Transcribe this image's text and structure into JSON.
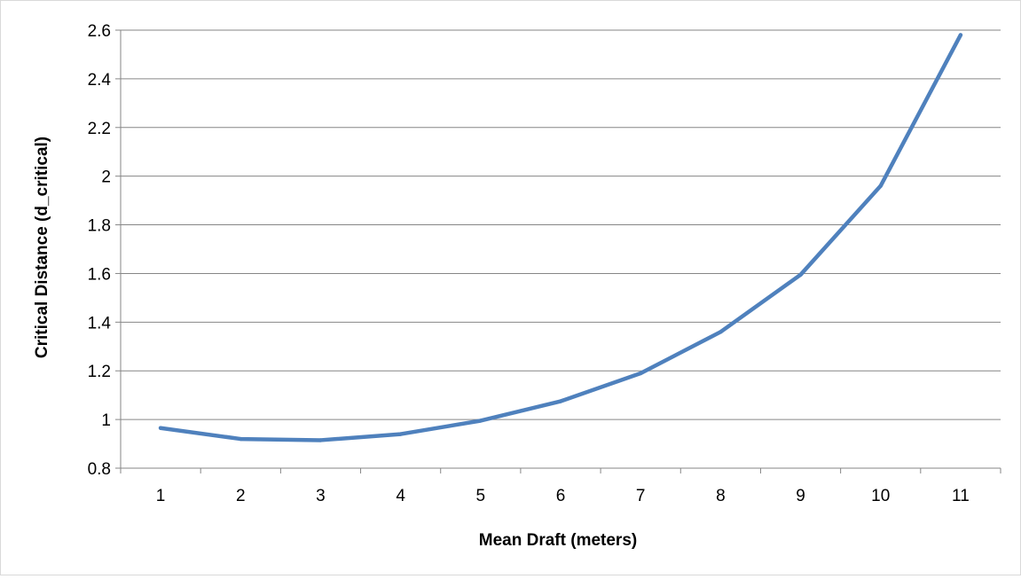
{
  "chart_data": {
    "type": "line",
    "title": "",
    "xlabel": "Mean Draft (meters)",
    "ylabel": "Critical Distance (d_critical)",
    "categories": [
      "1",
      "2",
      "3",
      "4",
      "5",
      "6",
      "7",
      "8",
      "9",
      "10",
      "11"
    ],
    "series": [
      {
        "values": [
          0.965,
          0.92,
          0.915,
          0.94,
          0.995,
          1.075,
          1.19,
          1.36,
          1.595,
          1.96,
          2.58
        ]
      }
    ],
    "ylim": [
      0.8,
      2.6
    ],
    "yticks": [
      "0.8",
      "1",
      "1.2",
      "1.4",
      "1.6",
      "1.8",
      "2",
      "2.2",
      "2.4",
      "2.6"
    ],
    "grid": true,
    "legend": "none",
    "colors": {
      "series": "#4f81bd",
      "grid": "#868686",
      "axis": "#868686"
    }
  }
}
